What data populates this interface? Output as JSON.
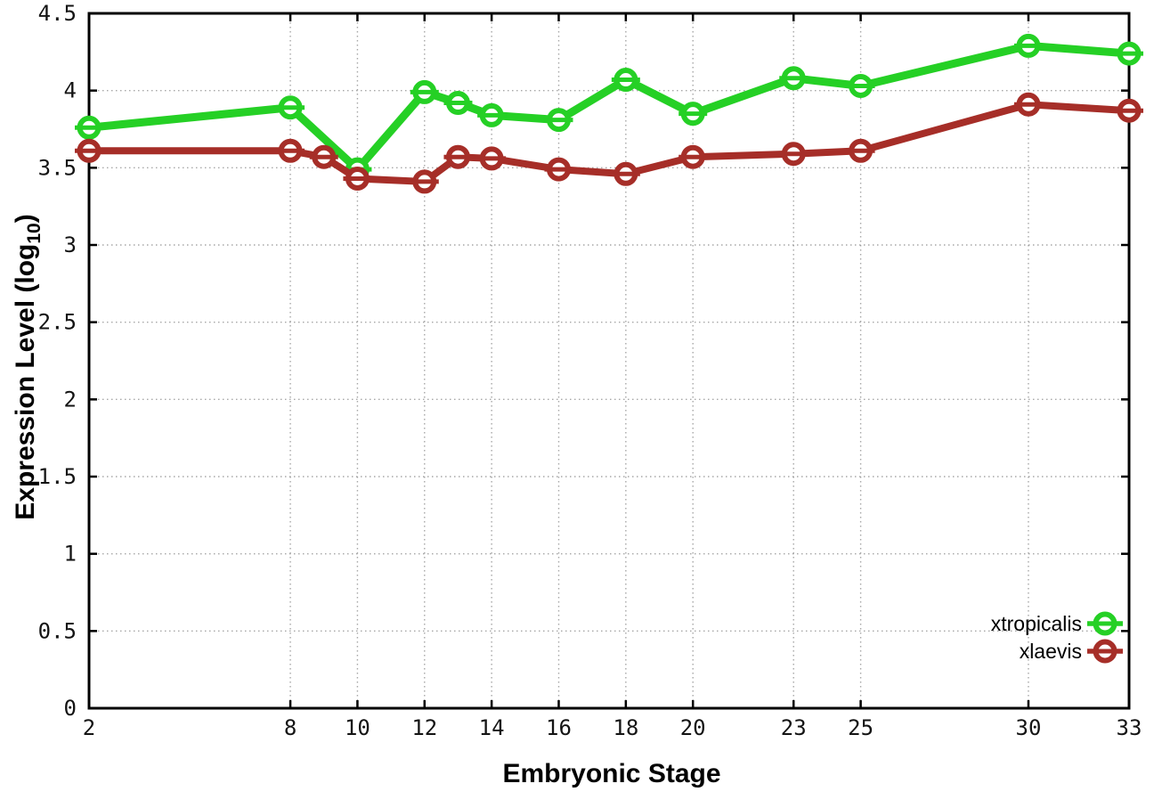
{
  "page": {
    "background": "#ffffff",
    "border_color": "#000000",
    "grid_color": "#8a8a8a"
  },
  "chart_data": {
    "type": "line",
    "title": "",
    "xlabel": "Embryonic Stage",
    "ylabel": "Expression Level (log10)",
    "ylabel_parts": {
      "main": "Expression Level (log",
      "sub": "10",
      "close": ")"
    },
    "xlim": [
      2,
      33
    ],
    "ylim": [
      0,
      4.5
    ],
    "x_ticks": [
      2,
      8,
      10,
      12,
      14,
      16,
      18,
      20,
      23,
      25,
      30,
      33
    ],
    "y_ticks": [
      0,
      0.5,
      1,
      1.5,
      2,
      2.5,
      3,
      3.5,
      4,
      4.5
    ],
    "grid": true,
    "legend_position": "bottom-right",
    "marker_style": "open-circle-with-horizontal-errorbar",
    "series": [
      {
        "name": "xtropicalis",
        "color": "#25d025",
        "line_width": 9,
        "x": [
          2,
          8,
          10,
          12,
          13,
          14,
          16,
          18,
          20,
          23,
          25,
          30,
          33
        ],
        "y": [
          3.76,
          3.89,
          3.49,
          3.99,
          3.92,
          3.84,
          3.81,
          4.07,
          3.85,
          4.08,
          4.03,
          4.29,
          4.24
        ]
      },
      {
        "name": "xlaevis",
        "color": "#a62e28",
        "line_width": 8,
        "x": [
          2,
          8,
          9,
          10,
          12,
          13,
          14,
          16,
          18,
          20,
          23,
          25,
          30,
          33
        ],
        "y": [
          3.61,
          3.61,
          3.57,
          3.43,
          3.41,
          3.57,
          3.56,
          3.49,
          3.46,
          3.57,
          3.59,
          3.61,
          3.91,
          3.87
        ]
      }
    ]
  }
}
